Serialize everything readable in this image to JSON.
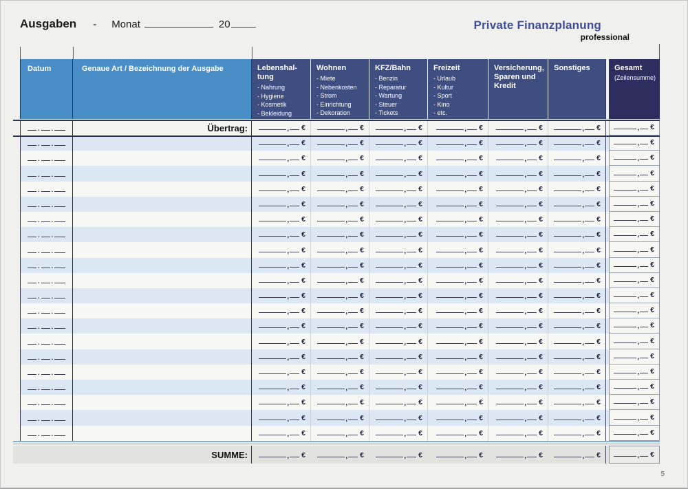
{
  "topbar": {
    "ausgaben_label": "Ausgaben",
    "dash": "-",
    "monat_label": "Monat",
    "year_prefix": "20"
  },
  "brand": {
    "title": "Private Finanzplanung",
    "subtitle": "professional"
  },
  "table": {
    "patterns": {
      "dot": ".",
      "comma": ",",
      "euro": "€"
    },
    "uebertrag_label": "Übertrag:",
    "summe_label": "SUMME:",
    "body_row_count": 20,
    "columns": [
      {
        "key": "datum",
        "style": "blue",
        "title_lines": [
          "Datum"
        ],
        "items": []
      },
      {
        "key": "bezeichnung",
        "style": "blue",
        "title_lines": [
          "Genaue Art / Bezeichnung  der Ausgabe"
        ],
        "items": []
      },
      {
        "key": "lebenshaltung",
        "style": "dark",
        "title_lines": [
          "Lebenshal-",
          "tung"
        ],
        "items": [
          "- Nahrung",
          "- Hygiene",
          "- Kosmetik",
          "- Bekleidung"
        ]
      },
      {
        "key": "wohnen",
        "style": "dark",
        "title_lines": [
          "Wohnen"
        ],
        "items": [
          "- Miete",
          "- Nebenkosten",
          "- Strom",
          "- Einrichtung",
          "- Dekoration"
        ]
      },
      {
        "key": "kfz-bahn",
        "style": "dark",
        "title_lines": [
          "KFZ/Bahn"
        ],
        "items": [
          "- Benzin",
          "- Reparatur",
          "- Wartung",
          "- Steuer",
          "- Tickets"
        ]
      },
      {
        "key": "freizeit",
        "style": "dark",
        "title_lines": [
          "Freizeit"
        ],
        "items": [
          "- Urlaub",
          "- Kultur",
          "- Sport",
          "- Kino",
          "- etc."
        ]
      },
      {
        "key": "versicherung-sparen-kredit",
        "style": "dark",
        "title_lines": [
          "Versicherung,",
          "Sparen und",
          "Kredit"
        ],
        "items": []
      },
      {
        "key": "sonstiges",
        "style": "dark",
        "title_lines": [
          "Sonstiges"
        ],
        "items": []
      },
      {
        "key": "gesamt",
        "style": "darkest",
        "title_lines": [
          "Gesamt"
        ],
        "subtitle": "(Zeilensumme)",
        "items": []
      }
    ]
  },
  "footer": {
    "page_number": "5"
  },
  "colors": {
    "header_blue": "#4a8ec7",
    "header_dark": "#3f4e81",
    "header_darkest": "#2d2d5f",
    "row_blue": "#dbe7f3",
    "row_white": "#f7f7f4",
    "summe_gray": "#e2e2df",
    "brand_blue": "#3c4c99",
    "rule_navy": "#2c3350",
    "rule_light_blue": "#7fb0d8"
  }
}
